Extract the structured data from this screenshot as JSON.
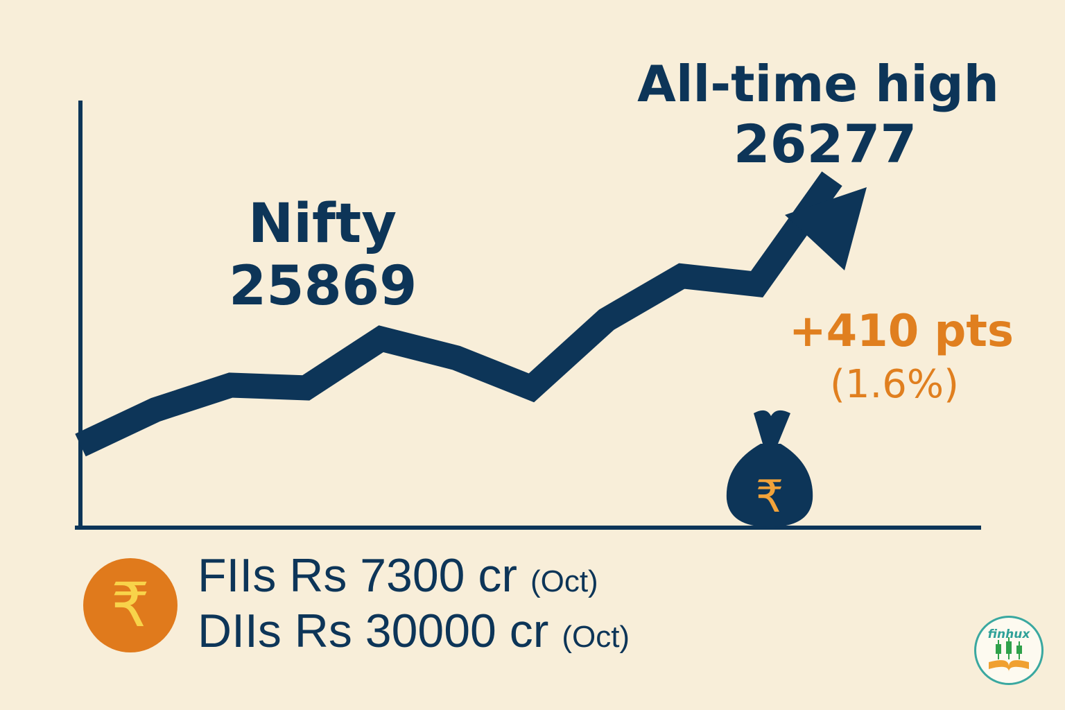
{
  "chart_data": {
    "type": "line",
    "title": "",
    "xlabel": "",
    "ylabel": "",
    "series": [
      {
        "values": [
          25300,
          25430,
          25520,
          25510,
          25690,
          25620,
          25510,
          25760,
          25920,
          25890,
          26277
        ]
      }
    ],
    "annotations": {
      "nifty_label": "Nifty",
      "nifty_value": "25869",
      "ath_label": "All-time high",
      "ath_value": "26277",
      "change_points": "+410 pts",
      "change_percent": "(1.6%)"
    },
    "grid": false,
    "colors": {
      "line": "#0d3558",
      "accent": "#e07f1f"
    }
  },
  "flows": {
    "fii": {
      "text": "FIIs Rs 7300 cr",
      "month": "(Oct)"
    },
    "dii": {
      "text": "DIIs Rs 30000 cr",
      "month": "(Oct)"
    }
  },
  "icons": {
    "coin": "rupee-coin-icon",
    "money_bag": "money-bag-icon",
    "logo": "finhux-logo-icon",
    "rupee_symbol": "₹"
  },
  "logo": {
    "text": "finhux"
  }
}
